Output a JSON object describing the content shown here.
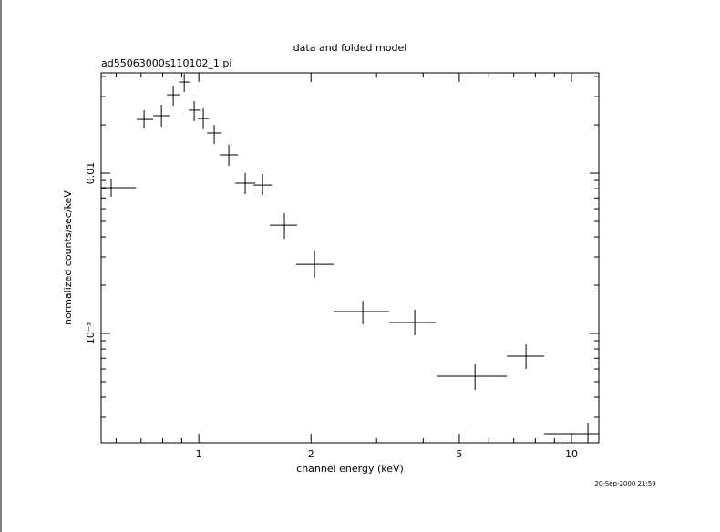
{
  "chart_data": {
    "type": "errorbar",
    "title": "data and folded model",
    "subtitle": "ad55063000s110102_1.pi",
    "x_label": "channel energy (keV)",
    "y_label": "normalized counts/sec/keV",
    "timestamp": "20-Sep-2000 21:59",
    "xscale": "log",
    "yscale": "log",
    "xlim": [
      0.547,
      11.84
    ],
    "ylim": [
      0.000208,
      0.0422
    ],
    "xticks": [
      1,
      2,
      5,
      10
    ],
    "xminorticks": [
      0.6,
      0.7,
      0.8,
      0.9,
      3,
      4,
      6,
      7,
      8,
      9
    ],
    "yticks": [
      0.01,
      {
        "value": 0.001,
        "label": "10⁻³"
      }
    ],
    "yminorticks": [
      0.0003,
      0.0004,
      0.0005,
      0.0006,
      0.0007,
      0.0008,
      0.0009,
      0.002,
      0.003,
      0.004,
      0.005,
      0.006,
      0.007,
      0.008,
      0.009,
      0.02,
      0.03,
      0.04
    ],
    "color": "#000000",
    "x": [
      0.582,
      0.713,
      0.794,
      0.854,
      0.914,
      0.972,
      1.028,
      1.1,
      1.204,
      1.332,
      1.483,
      1.697,
      2.044,
      2.755,
      3.798,
      5.51,
      7.55,
      11.07
    ],
    "x_low": [
      0.547,
      0.682,
      0.755,
      0.821,
      0.884,
      0.94,
      0.994,
      1.052,
      1.138,
      1.253,
      1.402,
      1.551,
      1.826,
      2.301,
      3.243,
      4.346,
      6.71,
      8.45
    ],
    "x_high": [
      0.678,
      0.755,
      0.835,
      0.889,
      0.945,
      1.006,
      1.064,
      1.151,
      1.274,
      1.418,
      1.569,
      1.837,
      2.301,
      3.243,
      4.323,
      6.71,
      8.45,
      11.84
    ],
    "y": [
      0.00811,
      0.0216,
      0.0228,
      0.0308,
      0.037,
      0.0247,
      0.0219,
      0.0178,
      0.013,
      0.00866,
      0.00843,
      0.00474,
      0.0027,
      0.00137,
      0.00117,
      0.000541,
      0.000721,
      0.000237
    ],
    "y_low": [
      0.00712,
      0.019,
      0.0195,
      0.0263,
      0.0321,
      0.0211,
      0.0188,
      0.0152,
      0.0111,
      0.0074,
      0.00731,
      0.0039,
      0.00222,
      0.00114,
      0.000974,
      0.000445,
      0.0006,
      0.000208
    ],
    "y_high": [
      0.00924,
      0.0247,
      0.0267,
      0.0351,
      0.0416,
      0.0281,
      0.0253,
      0.02,
      0.015,
      0.01,
      0.00987,
      0.00562,
      0.00329,
      0.0016,
      0.00141,
      0.000641,
      0.000855,
      0.000277
    ]
  }
}
